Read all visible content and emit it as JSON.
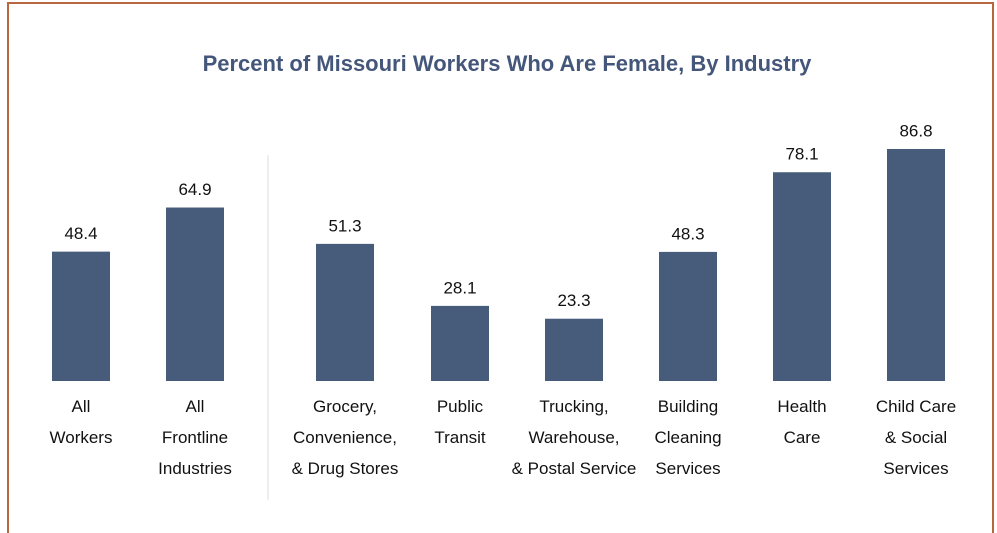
{
  "chart_data": {
    "type": "bar",
    "title": "Percent of Missouri Workers Who Are Female, By Industry",
    "categories": [
      "All\nWorkers",
      "All\nFrontline\nIndustries",
      "Grocery,\nConvenience,\n& Drug Stores",
      "Public\nTransit",
      "Trucking,\nWarehouse,\n& Postal Service",
      "Building\nCleaning\nServices",
      "Health\nCare",
      "Child Care\n& Social\nServices"
    ],
    "values": [
      48.4,
      64.9,
      51.3,
      28.1,
      23.3,
      48.3,
      78.1,
      86.8
    ],
    "color": "#475b7a"
  }
}
